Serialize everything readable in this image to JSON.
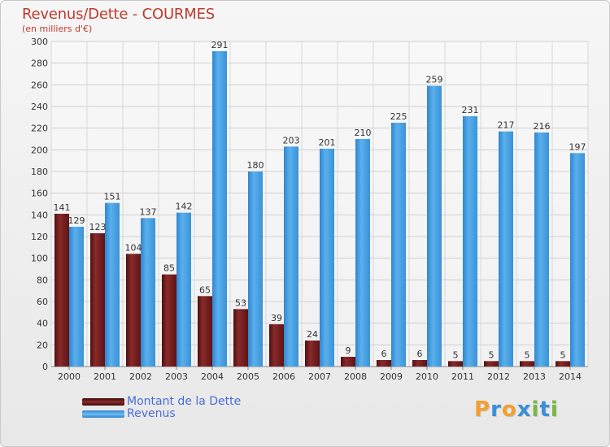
{
  "title": "Revenus/Dette - COURMES",
  "subtitle": "(en milliers d'€)",
  "legend": {
    "debt_label": "Montant de la Dette",
    "revenue_label": "Revenus"
  },
  "logo": {
    "letters": [
      "P",
      "r",
      "o",
      "x",
      "i",
      "t",
      "i"
    ]
  },
  "colors": {
    "debt": "#7a1e1e",
    "revenue": "#4aa3e6",
    "title": "#c0392b",
    "legend_text": "#4a6cd9",
    "logo": [
      "#f0a030",
      "#3a8fd6",
      "#f0a030",
      "#3a8fd6",
      "#7ab640",
      "#3a8fd6",
      "#7ab640"
    ]
  },
  "chart_data": {
    "type": "bar",
    "categories": [
      "2000",
      "2001",
      "2002",
      "2003",
      "2004",
      "2005",
      "2006",
      "2007",
      "2008",
      "2009",
      "2010",
      "2011",
      "2012",
      "2013",
      "2014"
    ],
    "series": [
      {
        "name": "Montant de la Dette",
        "values": [
          141,
          123,
          104,
          85,
          65,
          53,
          39,
          24,
          9,
          6,
          6,
          5,
          5,
          5,
          5
        ]
      },
      {
        "name": "Revenus",
        "values": [
          129,
          151,
          137,
          142,
          291,
          180,
          203,
          201,
          210,
          225,
          259,
          231,
          217,
          216,
          197
        ]
      }
    ],
    "ylim": [
      0,
      300
    ],
    "yticks": [
      0,
      20,
      40,
      60,
      80,
      100,
      120,
      140,
      160,
      180,
      200,
      220,
      240,
      260,
      280,
      300
    ],
    "grid": true,
    "legend_position": "bottom-left"
  }
}
